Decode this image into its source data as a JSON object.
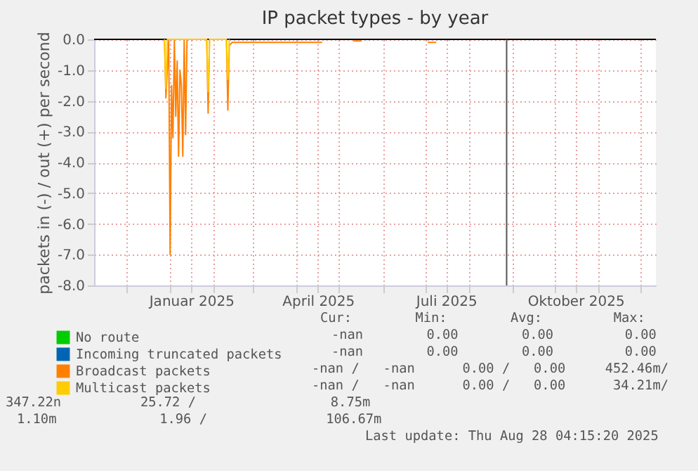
{
  "chart_data": {
    "type": "line",
    "title": "IP packet types - by year",
    "ylabel": "packets in (-) / out (+) per second",
    "xlim": [
      "2024-11-08",
      "2025-12-12"
    ],
    "xticks": [
      {
        "value": "2024-12-01",
        "label": null
      },
      {
        "value": "2025-01-01",
        "label": null
      },
      {
        "value": "2025-01-16",
        "label": "Januar 2025"
      },
      {
        "value": "2025-02-01",
        "label": null
      },
      {
        "value": "2025-03-01",
        "label": null
      },
      {
        "value": "2025-04-01",
        "label": null
      },
      {
        "value": "2025-04-16",
        "label": "April 2025"
      },
      {
        "value": "2025-05-01",
        "label": null
      },
      {
        "value": "2025-06-01",
        "label": null
      },
      {
        "value": "2025-07-01",
        "label": null
      },
      {
        "value": "2025-07-16",
        "label": "Juli 2025"
      },
      {
        "value": "2025-08-01",
        "label": null
      },
      {
        "value": "2025-09-01",
        "label": null
      },
      {
        "value": "2025-10-01",
        "label": null
      },
      {
        "value": "2025-10-16",
        "label": "Oktober 2025"
      },
      {
        "value": "2025-11-01",
        "label": null
      },
      {
        "value": "2025-12-01",
        "label": null
      }
    ],
    "ylim": [
      -8,
      0
    ],
    "yticks": [
      {
        "value": -8,
        "label": "-8.0"
      },
      {
        "value": -7,
        "label": "-7.0"
      },
      {
        "value": -6,
        "label": "-6.0"
      },
      {
        "value": -5,
        "label": "-5.0"
      },
      {
        "value": -4,
        "label": "-4.0"
      },
      {
        "value": -3,
        "label": "-3.0"
      },
      {
        "value": -2,
        "label": "-2.0"
      },
      {
        "value": -1,
        "label": "-1.0"
      },
      {
        "value": 0,
        "label": "0.0"
      }
    ],
    "grid": true,
    "legend": "bottom",
    "ref_lines": [
      {
        "axis": "x",
        "value": "2025-08-28",
        "color": "#555555"
      }
    ],
    "series": [
      {
        "name": "No route",
        "color": "#00cc00"
      },
      {
        "name": "Incoming truncated packets",
        "color": "#0066b3"
      },
      {
        "name": "Broadcast packets",
        "color": "#ff8000",
        "x": [
          "2024-12-28",
          "2024-12-29",
          "2024-12-31",
          "2025-01-01",
          "2025-01-02",
          "2025-01-03",
          "2025-01-04",
          "2025-01-05",
          "2025-01-06",
          "2025-01-07",
          "2025-01-08",
          "2025-01-09",
          "2025-01-10",
          "2025-01-11",
          "2025-01-12",
          "2025-01-13",
          "2025-01-14",
          "2025-01-15",
          "2025-01-26",
          "2025-01-27",
          "2025-01-28",
          "2025-01-29",
          "2025-02-09",
          "2025-02-10",
          "2025-02-11",
          "2025-02-12",
          "2025-02-14",
          "2025-03-01",
          "2025-03-20",
          "2025-04-19",
          "2025-04-20",
          "2025-05-11",
          "2025-05-17",
          "2025-05-18",
          "2025-07-03",
          "2025-07-09"
        ],
        "values": [
          0,
          -1.9,
          0,
          -7.0,
          -1.5,
          -3.2,
          0,
          -2.5,
          -0.7,
          -3.8,
          -1.0,
          -1.5,
          -3.8,
          0,
          -3.1,
          0,
          0,
          null,
          null,
          0,
          -2.4,
          0,
          null,
          0,
          -2.3,
          -0.2,
          -0.1,
          -0.1,
          -0.1,
          -0.1,
          null,
          -0.05,
          -0.05,
          null,
          -0.1,
          -0.1
        ]
      },
      {
        "name": "Multicast packets",
        "color": "#ffcc00",
        "x": [
          "2024-12-28",
          "2024-12-29",
          "2024-12-30",
          "2025-01-27",
          "2025-01-28",
          "2025-01-29",
          "2025-02-10",
          "2025-02-11",
          "2025-02-12"
        ],
        "values": [
          0,
          -1.6,
          0,
          0,
          -1.7,
          0,
          0,
          -1.3,
          0
        ]
      }
    ],
    "annotations": [
      "Cur:        Min:        Avg:         Max:",
      "-nan        0.00        0.00         0.00",
      "-nan        0.00        0.00         0.00",
      "-nan /   -nan      0.00 /   0.00     452.46m/",
      "-nan /   -nan      0.00 /   0.00      34.21m/",
      "347.22n          25.72 /                 8.75m",
      "1.10m             1.96 /               106.67m",
      "Last update: Thu Aug 28 04:15:20 2025"
    ]
  }
}
